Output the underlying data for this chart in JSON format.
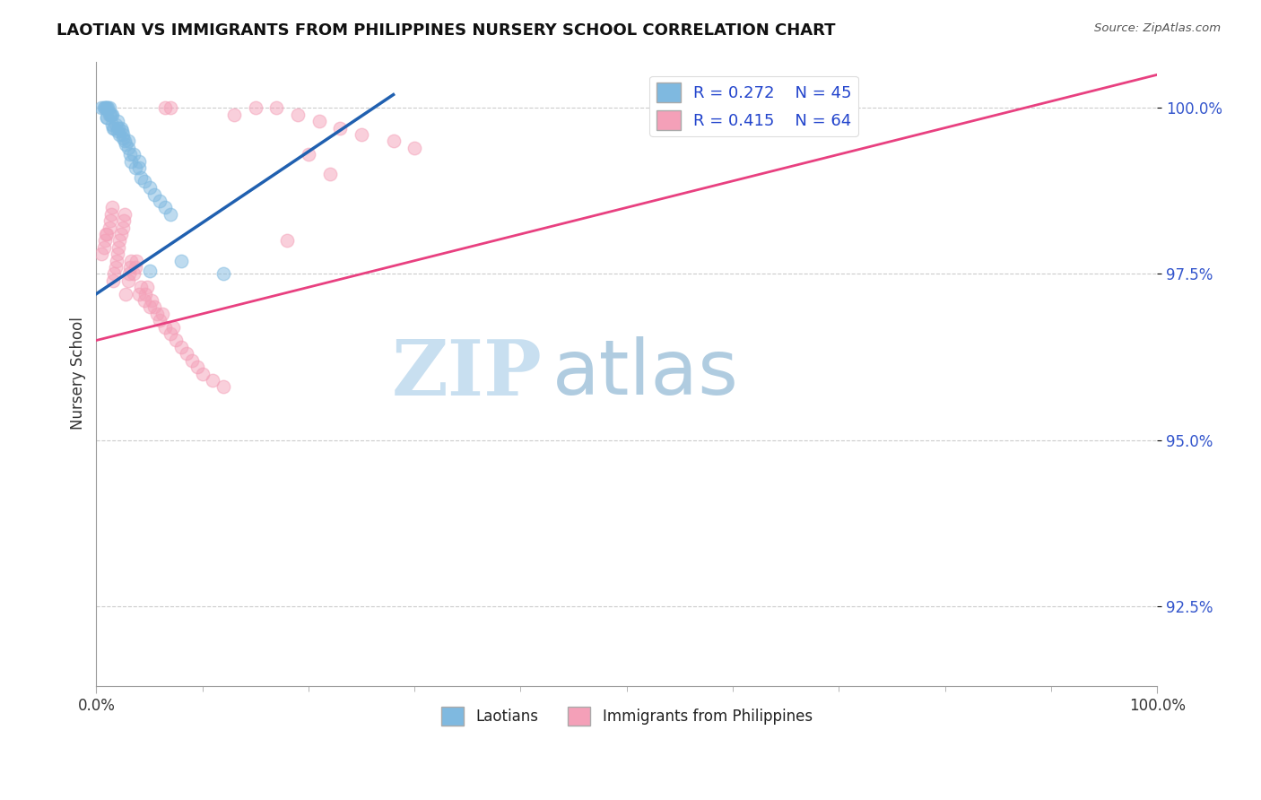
{
  "title": "LAOTIAN VS IMMIGRANTS FROM PHILIPPINES NURSERY SCHOOL CORRELATION CHART",
  "source": "Source: ZipAtlas.com",
  "ylabel": "Nursery School",
  "xlim": [
    0.0,
    1.0
  ],
  "ylim": [
    0.913,
    1.007
  ],
  "yticks": [
    0.925,
    0.95,
    0.975,
    1.0
  ],
  "ytick_labels": [
    "92.5%",
    "95.0%",
    "97.5%",
    "100.0%"
  ],
  "xtick_labels": [
    "0.0%",
    "100.0%"
  ],
  "legend_R_blue": "R = 0.272",
  "legend_N_blue": "N = 45",
  "legend_R_pink": "R = 0.415",
  "legend_N_pink": "N = 64",
  "blue_color": "#7fb9e0",
  "pink_color": "#f4a0b8",
  "blue_line_color": "#2060b0",
  "pink_line_color": "#e84080",
  "watermark_zip": "ZIP",
  "watermark_atlas": "atlas",
  "watermark_zip_color": "#c8dff0",
  "watermark_atlas_color": "#b0cce0",
  "blue_scatter_x": [
    0.005,
    0.007,
    0.008,
    0.009,
    0.01,
    0.01,
    0.01,
    0.011,
    0.012,
    0.012,
    0.013,
    0.014,
    0.015,
    0.015,
    0.016,
    0.017,
    0.018,
    0.02,
    0.02,
    0.021,
    0.022,
    0.023,
    0.024,
    0.025,
    0.025,
    0.027,
    0.028,
    0.03,
    0.03,
    0.032,
    0.033,
    0.035,
    0.037,
    0.04,
    0.04,
    0.042,
    0.045,
    0.05,
    0.055,
    0.06,
    0.065,
    0.07,
    0.08,
    0.12,
    0.05
  ],
  "blue_scatter_y": [
    1.0,
    1.0,
    1.0,
    1.0,
    1.0,
    0.9985,
    0.9985,
    1.0,
    1.0,
    0.999,
    0.999,
    0.999,
    0.999,
    0.9975,
    0.997,
    0.997,
    0.9975,
    0.998,
    0.9965,
    0.997,
    0.996,
    0.997,
    0.9965,
    0.996,
    0.9955,
    0.995,
    0.9945,
    0.995,
    0.994,
    0.993,
    0.992,
    0.993,
    0.991,
    0.991,
    0.992,
    0.9895,
    0.989,
    0.988,
    0.987,
    0.986,
    0.985,
    0.984,
    0.977,
    0.975,
    0.9755
  ],
  "pink_scatter_x": [
    0.005,
    0.007,
    0.008,
    0.009,
    0.01,
    0.012,
    0.013,
    0.014,
    0.015,
    0.016,
    0.017,
    0.018,
    0.019,
    0.02,
    0.021,
    0.022,
    0.023,
    0.025,
    0.026,
    0.027,
    0.028,
    0.03,
    0.031,
    0.032,
    0.033,
    0.035,
    0.037,
    0.038,
    0.04,
    0.042,
    0.045,
    0.046,
    0.048,
    0.05,
    0.052,
    0.055,
    0.057,
    0.06,
    0.062,
    0.065,
    0.07,
    0.072,
    0.075,
    0.08,
    0.085,
    0.09,
    0.095,
    0.1,
    0.11,
    0.12,
    0.13,
    0.15,
    0.17,
    0.19,
    0.21,
    0.23,
    0.25,
    0.28,
    0.3,
    0.2,
    0.065,
    0.07,
    0.18,
    0.22
  ],
  "pink_scatter_y": [
    0.978,
    0.979,
    0.98,
    0.981,
    0.981,
    0.982,
    0.983,
    0.984,
    0.985,
    0.974,
    0.975,
    0.976,
    0.977,
    0.978,
    0.979,
    0.98,
    0.981,
    0.982,
    0.983,
    0.984,
    0.972,
    0.974,
    0.975,
    0.976,
    0.977,
    0.975,
    0.976,
    0.977,
    0.972,
    0.973,
    0.971,
    0.972,
    0.973,
    0.97,
    0.971,
    0.97,
    0.969,
    0.968,
    0.969,
    0.967,
    0.966,
    0.967,
    0.965,
    0.964,
    0.963,
    0.962,
    0.961,
    0.96,
    0.959,
    0.958,
    0.999,
    1.0,
    1.0,
    0.999,
    0.998,
    0.997,
    0.996,
    0.995,
    0.994,
    0.993,
    1.0,
    1.0,
    0.98,
    0.99
  ],
  "blue_line_x": [
    0.0,
    0.28
  ],
  "blue_line_y": [
    0.972,
    1.002
  ],
  "pink_line_x": [
    0.0,
    1.0
  ],
  "pink_line_y": [
    0.965,
    1.005
  ]
}
